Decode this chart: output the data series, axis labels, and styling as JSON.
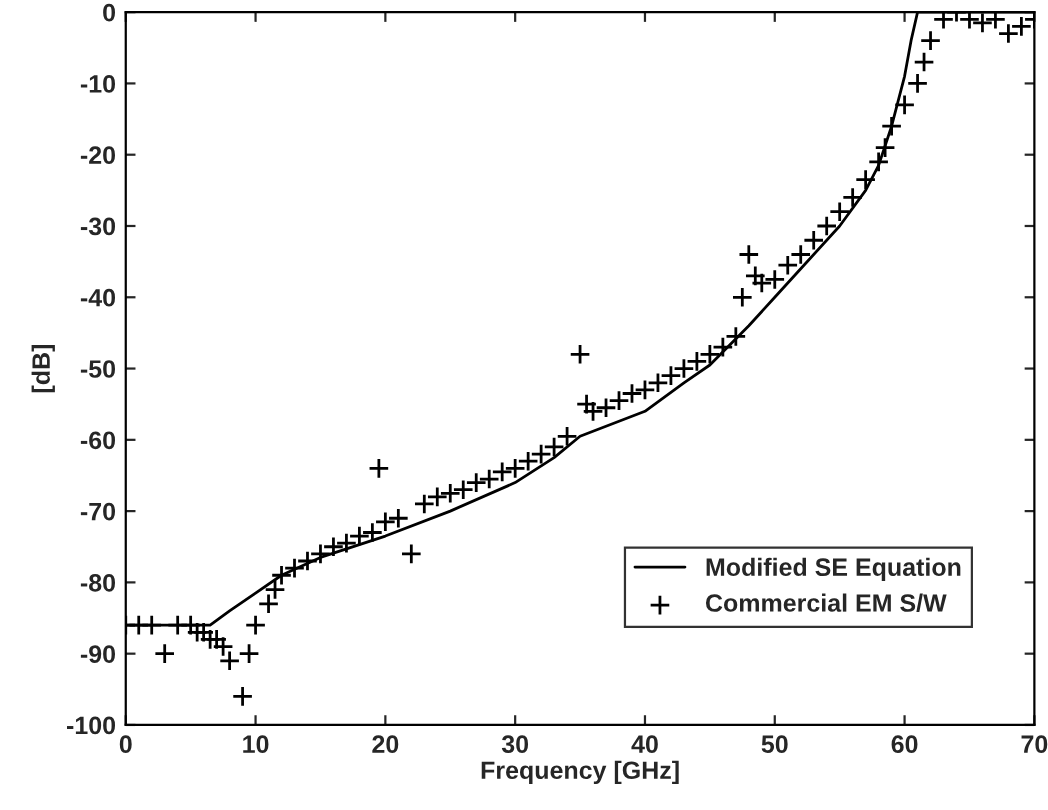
{
  "chart_data": {
    "type": "line",
    "xlabel": "Frequency [GHz]",
    "ylabel": "[dB]",
    "xlim": [
      0,
      70
    ],
    "ylim": [
      -100,
      0
    ],
    "xticks": [
      0,
      10,
      20,
      30,
      40,
      50,
      60,
      70
    ],
    "yticks": [
      -100,
      -90,
      -80,
      -70,
      -60,
      -50,
      -40,
      -30,
      -20,
      -10,
      0
    ],
    "grid": false,
    "legend": "bottom right",
    "series": [
      {
        "name": "Modified SE Equation",
        "color": "#000000",
        "marker": "none",
        "line_style": "solid",
        "x": [
          0,
          3,
          6.5,
          8,
          10,
          12,
          15,
          20,
          25,
          30,
          33,
          35,
          40,
          43,
          45,
          48,
          50,
          52,
          55,
          57,
          58,
          59,
          60,
          60.5,
          61,
          70
        ],
        "values": [
          -86,
          -86,
          -86,
          -84,
          -81.5,
          -79,
          -76.5,
          -73.5,
          -70,
          -66,
          -62.5,
          -59.5,
          -56,
          -52,
          -49.5,
          -44,
          -40,
          -36,
          -30,
          -25,
          -21.5,
          -16,
          -9,
          -4,
          0,
          0
        ]
      },
      {
        "name": "Commercial EM S/W",
        "type": "scatter",
        "color": "#000000",
        "marker": "cross",
        "x": [
          0,
          1,
          2,
          3,
          4,
          5,
          5.5,
          6,
          6.5,
          7,
          7.5,
          8,
          9,
          9.5,
          10,
          11,
          11.5,
          12,
          13,
          14,
          15,
          16,
          17,
          18,
          19,
          19.5,
          20,
          21,
          22,
          23,
          24,
          25,
          26,
          27,
          28,
          29,
          30,
          31,
          32,
          33,
          34,
          35,
          35.5,
          36,
          37,
          38,
          39,
          40,
          41,
          42,
          43,
          44,
          45,
          46,
          47,
          47.5,
          48,
          48.5,
          49,
          50,
          51,
          52,
          53,
          54,
          55,
          56,
          57,
          58,
          58.5,
          59,
          60,
          61,
          61.5,
          62,
          63,
          64,
          65,
          66,
          67,
          68,
          69,
          70
        ],
        "values": [
          -86,
          -86,
          -86,
          -90,
          -86,
          -86,
          -87,
          -87,
          -88,
          -88,
          -89,
          -91,
          -96,
          -90,
          -86,
          -83,
          -81,
          -79,
          -78,
          -77,
          -76,
          -75,
          -74.5,
          -73.5,
          -73,
          -64,
          -71.5,
          -71,
          -76,
          -69,
          -68,
          -67.5,
          -67,
          -66,
          -65.5,
          -64.5,
          -64,
          -63,
          -62,
          -61,
          -59.5,
          -48,
          -55,
          -56,
          -55.5,
          -54.5,
          -53.5,
          -53,
          -52,
          -51,
          -50,
          -49,
          -48,
          -47,
          -45.5,
          -40,
          -34,
          -37,
          -38,
          -37.5,
          -35.5,
          -34,
          -32,
          -30,
          -28,
          -26,
          -23.5,
          -21,
          -19,
          -16,
          -13,
          -10,
          -7,
          -4,
          -1,
          0,
          -1,
          -1.5,
          -1,
          -3,
          -2,
          -1
        ]
      }
    ]
  }
}
